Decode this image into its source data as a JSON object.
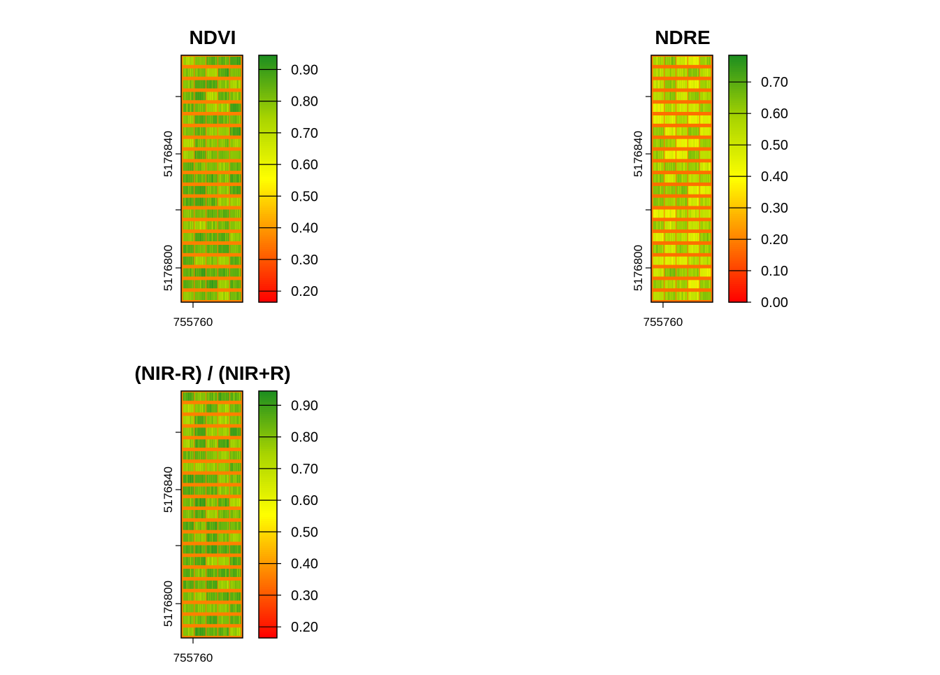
{
  "figure": {
    "colors": {
      "ramp": [
        "#ff0000",
        "#ff8000",
        "#ffff00",
        "#a8d400",
        "#1f8f1f"
      ],
      "background": "#ffffff"
    }
  },
  "chart_data": [
    {
      "type": "heatmap",
      "title": "NDVI",
      "layer": "ndvi",
      "x_ticks": [
        755760
      ],
      "x_tick_labels": [
        "755760"
      ],
      "y_ticks": [
        5176800,
        5176840
      ],
      "y_tick_labels": [
        "5176800",
        "5176840"
      ],
      "legend": {
        "range": [
          0.165,
          0.945
        ],
        "ticks": [
          0.2,
          0.3,
          0.4,
          0.5,
          0.6,
          0.7,
          0.8,
          0.9
        ],
        "tick_labels": [
          "0.20",
          "0.30",
          "0.40",
          "0.50",
          "0.60",
          "0.70",
          "0.80",
          "0.90"
        ],
        "palette": [
          "#ff0000",
          "#ff8000",
          "#ffff00",
          "#a8d400",
          "#1f8f1f"
        ]
      },
      "plot_rows": 21,
      "plot_columns": 5
    },
    {
      "type": "heatmap",
      "title": "NDRE",
      "layer": "ndre",
      "x_ticks": [
        755760
      ],
      "x_tick_labels": [
        "755760"
      ],
      "y_ticks": [
        5176800,
        5176840
      ],
      "y_tick_labels": [
        "5176800",
        "5176840"
      ],
      "legend": {
        "range": [
          0.0,
          0.785
        ],
        "ticks": [
          0.0,
          0.1,
          0.2,
          0.3,
          0.4,
          0.5,
          0.6,
          0.7
        ],
        "tick_labels": [
          "0.00",
          "0.10",
          "0.20",
          "0.30",
          "0.40",
          "0.50",
          "0.60",
          "0.70"
        ],
        "palette": [
          "#ff0000",
          "#ff8000",
          "#ffff00",
          "#a8d400",
          "#1f8f1f"
        ]
      },
      "plot_rows": 21,
      "plot_columns": 5
    },
    {
      "type": "heatmap",
      "title": "(NIR-R) / (NIR+R)",
      "layer": "ndvi",
      "x_ticks": [
        755760
      ],
      "x_tick_labels": [
        "755760"
      ],
      "y_ticks": [
        5176800,
        5176840
      ],
      "y_tick_labels": [
        "5176800",
        "5176840"
      ],
      "legend": {
        "range": [
          0.165,
          0.945
        ],
        "ticks": [
          0.2,
          0.3,
          0.4,
          0.5,
          0.6,
          0.7,
          0.8,
          0.9
        ],
        "tick_labels": [
          "0.20",
          "0.30",
          "0.40",
          "0.50",
          "0.60",
          "0.70",
          "0.80",
          "0.90"
        ],
        "palette": [
          "#ff0000",
          "#ff8000",
          "#ffff00",
          "#a8d400",
          "#1f8f1f"
        ]
      },
      "plot_rows": 21,
      "plot_columns": 5
    }
  ]
}
